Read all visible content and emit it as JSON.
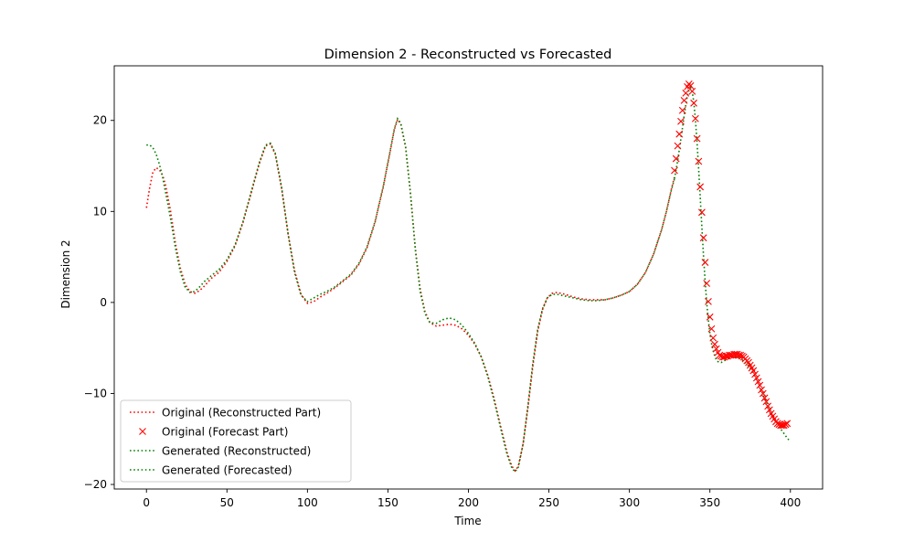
{
  "chart_data": {
    "type": "line",
    "title": "Dimension 2 - Reconstructed vs Forecasted",
    "xlabel": "Time",
    "ylabel": "Dimension 2",
    "xlim": [
      -20,
      420
    ],
    "ylim": [
      -20.5,
      26
    ],
    "xticks": [
      0,
      50,
      100,
      150,
      200,
      250,
      300,
      350,
      400
    ],
    "yticks": [
      -20,
      -10,
      0,
      10,
      20
    ],
    "grid": false,
    "legend_position": "bottom-left",
    "colors": {
      "original": "#ff0000",
      "generated": "#008000"
    },
    "series": [
      {
        "name": "Original (Reconstructed Part)",
        "style": "dotted",
        "color": "#ff0000",
        "points": [
          [
            0,
            10.4
          ],
          [
            2,
            12.6
          ],
          [
            4,
            14.3
          ],
          [
            6,
            14.8
          ],
          [
            8,
            14.6
          ],
          [
            10,
            14.0
          ],
          [
            12,
            12.8
          ],
          [
            15,
            10.0
          ],
          [
            18,
            6.5
          ],
          [
            21,
            3.8
          ],
          [
            24,
            2.0
          ],
          [
            27,
            1.2
          ],
          [
            30,
            1.0
          ],
          [
            33,
            1.3
          ],
          [
            36,
            1.8
          ],
          [
            40,
            2.6
          ],
          [
            45,
            3.3
          ],
          [
            50,
            4.5
          ],
          [
            55,
            6.2
          ],
          [
            60,
            8.8
          ],
          [
            65,
            12.0
          ],
          [
            70,
            15.2
          ],
          [
            74,
            17.2
          ],
          [
            77,
            17.4
          ],
          [
            80,
            16.3
          ],
          [
            84,
            12.5
          ],
          [
            88,
            7.5
          ],
          [
            92,
            3.5
          ],
          [
            96,
            0.9
          ],
          [
            100,
            -0.1
          ],
          [
            104,
            0.1
          ],
          [
            108,
            0.6
          ],
          [
            112,
            1.0
          ],
          [
            117,
            1.6
          ],
          [
            122,
            2.3
          ],
          [
            127,
            3.0
          ],
          [
            132,
            4.2
          ],
          [
            137,
            6.0
          ],
          [
            142,
            8.8
          ],
          [
            147,
            12.6
          ],
          [
            151,
            16.2
          ],
          [
            154,
            19.0
          ],
          [
            156,
            20.1
          ],
          [
            158,
            19.6
          ],
          [
            161,
            17.0
          ],
          [
            164,
            12.0
          ],
          [
            167,
            6.0
          ],
          [
            170,
            1.5
          ],
          [
            173,
            -1.0
          ],
          [
            176,
            -2.2
          ],
          [
            180,
            -2.6
          ],
          [
            184,
            -2.5
          ],
          [
            188,
            -2.4
          ],
          [
            192,
            -2.5
          ],
          [
            196,
            -2.9
          ],
          [
            200,
            -3.6
          ],
          [
            204,
            -4.6
          ],
          [
            208,
            -6.0
          ],
          [
            212,
            -8.0
          ],
          [
            216,
            -10.6
          ],
          [
            220,
            -13.6
          ],
          [
            224,
            -16.5
          ],
          [
            227,
            -18.0
          ],
          [
            229,
            -18.5
          ],
          [
            231,
            -18.0
          ],
          [
            234,
            -15.5
          ],
          [
            237,
            -11.5
          ],
          [
            240,
            -7.0
          ],
          [
            243,
            -3.2
          ],
          [
            246,
            -0.8
          ],
          [
            249,
            0.5
          ],
          [
            252,
            1.0
          ],
          [
            255,
            1.1
          ],
          [
            260,
            0.9
          ],
          [
            265,
            0.6
          ],
          [
            270,
            0.4
          ],
          [
            275,
            0.3
          ],
          [
            280,
            0.3
          ],
          [
            285,
            0.3
          ],
          [
            290,
            0.5
          ],
          [
            295,
            0.8
          ],
          [
            300,
            1.2
          ],
          [
            305,
            2.0
          ],
          [
            310,
            3.3
          ],
          [
            315,
            5.3
          ],
          [
            320,
            8.0
          ],
          [
            323,
            10.0
          ],
          [
            326,
            12.4
          ],
          [
            328,
            13.8
          ]
        ]
      },
      {
        "name": "Original (Forecast Part)",
        "style": "x-markers",
        "color": "#ff0000",
        "points": [
          [
            328,
            14.5
          ],
          [
            329,
            15.8
          ],
          [
            330,
            17.2
          ],
          [
            331,
            18.5
          ],
          [
            332,
            19.9
          ],
          [
            333,
            21.1
          ],
          [
            334,
            22.2
          ],
          [
            335,
            23.0
          ],
          [
            336,
            23.7
          ],
          [
            337,
            24.0
          ],
          [
            338,
            23.8
          ],
          [
            339,
            23.2
          ],
          [
            340,
            21.9
          ],
          [
            341,
            20.2
          ],
          [
            342,
            18.0
          ],
          [
            343,
            15.5
          ],
          [
            344,
            12.7
          ],
          [
            345,
            9.9
          ],
          [
            346,
            7.1
          ],
          [
            347,
            4.4
          ],
          [
            348,
            2.1
          ],
          [
            349,
            0.1
          ],
          [
            350,
            -1.6
          ],
          [
            351,
            -2.9
          ],
          [
            352,
            -3.9
          ],
          [
            353,
            -4.6
          ],
          [
            354,
            -5.1
          ],
          [
            355,
            -5.5
          ],
          [
            356,
            -5.8
          ],
          [
            357,
            -5.9
          ],
          [
            358,
            -6.0
          ],
          [
            359,
            -6.0
          ],
          [
            360,
            -5.9
          ],
          [
            361,
            -5.9
          ],
          [
            362,
            -5.8
          ],
          [
            363,
            -5.8
          ],
          [
            364,
            -5.8
          ],
          [
            365,
            -5.7
          ],
          [
            366,
            -5.7
          ],
          [
            367,
            -5.7
          ],
          [
            368,
            -5.8
          ],
          [
            369,
            -5.8
          ],
          [
            370,
            -5.9
          ],
          [
            371,
            -6.0
          ],
          [
            372,
            -6.2
          ],
          [
            373,
            -6.4
          ],
          [
            374,
            -6.6
          ],
          [
            375,
            -6.9
          ],
          [
            376,
            -7.2
          ],
          [
            377,
            -7.5
          ],
          [
            378,
            -7.9
          ],
          [
            379,
            -8.3
          ],
          [
            380,
            -8.7
          ],
          [
            381,
            -9.1
          ],
          [
            382,
            -9.6
          ],
          [
            383,
            -10.0
          ],
          [
            384,
            -10.5
          ],
          [
            385,
            -10.9
          ],
          [
            386,
            -11.4
          ],
          [
            387,
            -11.8
          ],
          [
            388,
            -12.2
          ],
          [
            389,
            -12.5
          ],
          [
            390,
            -12.8
          ],
          [
            391,
            -13.1
          ],
          [
            392,
            -13.3
          ],
          [
            393,
            -13.4
          ],
          [
            394,
            -13.5
          ],
          [
            395,
            -13.5
          ],
          [
            396,
            -13.5
          ],
          [
            397,
            -13.4
          ],
          [
            398,
            -13.3
          ]
        ]
      },
      {
        "name": "Generated (Reconstructed)",
        "style": "dotted",
        "color": "#008000",
        "points": [
          [
            0,
            17.3
          ],
          [
            2,
            17.3
          ],
          [
            4,
            17.0
          ],
          [
            6,
            16.3
          ],
          [
            8,
            15.2
          ],
          [
            10,
            13.8
          ],
          [
            12,
            12.0
          ],
          [
            15,
            9.2
          ],
          [
            18,
            6.0
          ],
          [
            21,
            3.4
          ],
          [
            24,
            1.7
          ],
          [
            27,
            1.1
          ],
          [
            30,
            1.2
          ],
          [
            33,
            1.7
          ],
          [
            36,
            2.3
          ],
          [
            40,
            2.9
          ],
          [
            45,
            3.6
          ],
          [
            50,
            4.7
          ],
          [
            55,
            6.3
          ],
          [
            60,
            8.9
          ],
          [
            65,
            12.1
          ],
          [
            70,
            15.3
          ],
          [
            74,
            17.3
          ],
          [
            77,
            17.5
          ],
          [
            80,
            16.4
          ],
          [
            84,
            12.6
          ],
          [
            88,
            7.5
          ],
          [
            92,
            3.3
          ],
          [
            96,
            0.8
          ],
          [
            100,
            0.1
          ],
          [
            104,
            0.5
          ],
          [
            108,
            0.9
          ],
          [
            112,
            1.2
          ],
          [
            117,
            1.7
          ],
          [
            122,
            2.4
          ],
          [
            127,
            3.1
          ],
          [
            132,
            4.3
          ],
          [
            137,
            6.1
          ],
          [
            142,
            8.9
          ],
          [
            147,
            12.7
          ],
          [
            151,
            16.3
          ],
          [
            154,
            19.1
          ],
          [
            156,
            20.2
          ],
          [
            158,
            19.7
          ],
          [
            161,
            17.1
          ],
          [
            164,
            12.0
          ],
          [
            167,
            5.8
          ],
          [
            170,
            1.2
          ],
          [
            173,
            -1.2
          ],
          [
            176,
            -2.2
          ],
          [
            180,
            -2.3
          ],
          [
            184,
            -1.9
          ],
          [
            188,
            -1.7
          ],
          [
            192,
            -1.9
          ],
          [
            196,
            -2.5
          ],
          [
            200,
            -3.4
          ],
          [
            204,
            -4.5
          ],
          [
            208,
            -6.0
          ],
          [
            212,
            -8.1
          ],
          [
            216,
            -10.8
          ],
          [
            220,
            -13.8
          ],
          [
            224,
            -16.7
          ],
          [
            227,
            -18.2
          ],
          [
            229,
            -18.6
          ],
          [
            231,
            -18.1
          ],
          [
            234,
            -15.5
          ],
          [
            237,
            -11.3
          ],
          [
            240,
            -6.7
          ],
          [
            243,
            -3.0
          ],
          [
            246,
            -0.7
          ],
          [
            249,
            0.5
          ],
          [
            252,
            0.9
          ],
          [
            255,
            0.9
          ],
          [
            260,
            0.7
          ],
          [
            265,
            0.5
          ],
          [
            270,
            0.3
          ],
          [
            275,
            0.2
          ],
          [
            280,
            0.2
          ],
          [
            285,
            0.3
          ],
          [
            290,
            0.5
          ],
          [
            295,
            0.8
          ],
          [
            300,
            1.2
          ],
          [
            305,
            2.0
          ],
          [
            310,
            3.3
          ],
          [
            315,
            5.3
          ],
          [
            320,
            8.0
          ],
          [
            323,
            10.0
          ],
          [
            326,
            12.3
          ],
          [
            328,
            13.6
          ]
        ]
      },
      {
        "name": "Generated (Forecasted)",
        "style": "dotted",
        "color": "#008000",
        "points": [
          [
            328,
            13.6
          ],
          [
            330,
            15.6
          ],
          [
            332,
            18.0
          ],
          [
            334,
            20.5
          ],
          [
            335,
            21.7
          ],
          [
            336,
            22.7
          ],
          [
            337,
            23.3
          ],
          [
            338,
            23.6
          ],
          [
            339,
            23.2
          ],
          [
            340,
            22.0
          ],
          [
            341,
            20.1
          ],
          [
            342,
            17.6
          ],
          [
            343,
            14.7
          ],
          [
            344,
            11.5
          ],
          [
            345,
            8.3
          ],
          [
            346,
            5.2
          ],
          [
            347,
            2.4
          ],
          [
            348,
            0.0
          ],
          [
            349,
            -1.9
          ],
          [
            350,
            -3.4
          ],
          [
            351,
            -4.5
          ],
          [
            352,
            -5.3
          ],
          [
            353,
            -5.9
          ],
          [
            354,
            -6.3
          ],
          [
            355,
            -6.5
          ],
          [
            356,
            -6.6
          ],
          [
            357,
            -6.6
          ],
          [
            358,
            -6.5
          ],
          [
            360,
            -6.3
          ],
          [
            362,
            -6.1
          ],
          [
            364,
            -6.0
          ],
          [
            366,
            -6.0
          ],
          [
            368,
            -6.1
          ],
          [
            370,
            -6.3
          ],
          [
            372,
            -6.6
          ],
          [
            374,
            -7.0
          ],
          [
            376,
            -7.5
          ],
          [
            378,
            -8.2
          ],
          [
            380,
            -8.9
          ],
          [
            382,
            -9.7
          ],
          [
            384,
            -10.5
          ],
          [
            386,
            -11.3
          ],
          [
            388,
            -12.1
          ],
          [
            390,
            -12.8
          ],
          [
            392,
            -13.4
          ],
          [
            394,
            -13.9
          ],
          [
            396,
            -14.4
          ],
          [
            398,
            -14.9
          ],
          [
            399,
            -15.1
          ]
        ]
      }
    ]
  }
}
